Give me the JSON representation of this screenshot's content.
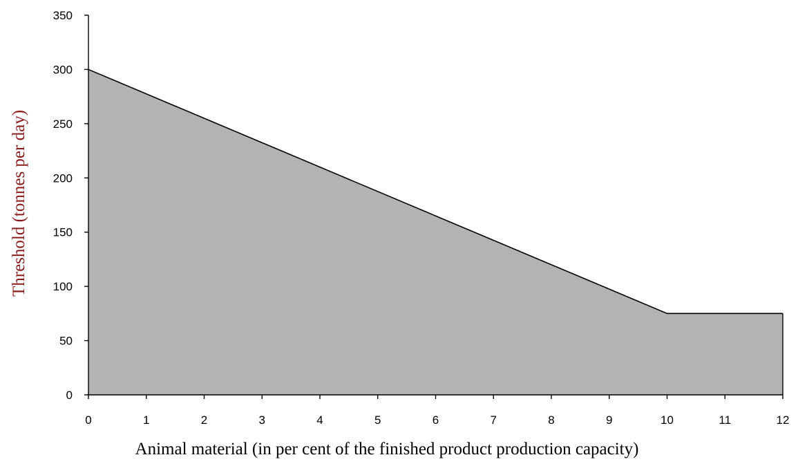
{
  "chart_data": {
    "type": "area",
    "title": "",
    "xlabel": "Animal material (in per cent of the finished product production capacity)",
    "ylabel": "Threshold (tonnes per day)",
    "xlim": [
      0,
      12
    ],
    "ylim": [
      0,
      350
    ],
    "xticks": [
      0,
      1,
      2,
      3,
      4,
      5,
      6,
      7,
      8,
      9,
      10,
      11,
      12
    ],
    "yticks": [
      0,
      50,
      100,
      150,
      200,
      250,
      300,
      350
    ],
    "grid": false,
    "legend": "none",
    "series": [
      {
        "x": [
          0,
          10,
          12
        ],
        "y": [
          300,
          75,
          75
        ]
      }
    ],
    "colors": {
      "fill": "#b3b3b3",
      "line": "#000000",
      "axis": "#000000",
      "ylabel": "#8b1a1a"
    }
  }
}
